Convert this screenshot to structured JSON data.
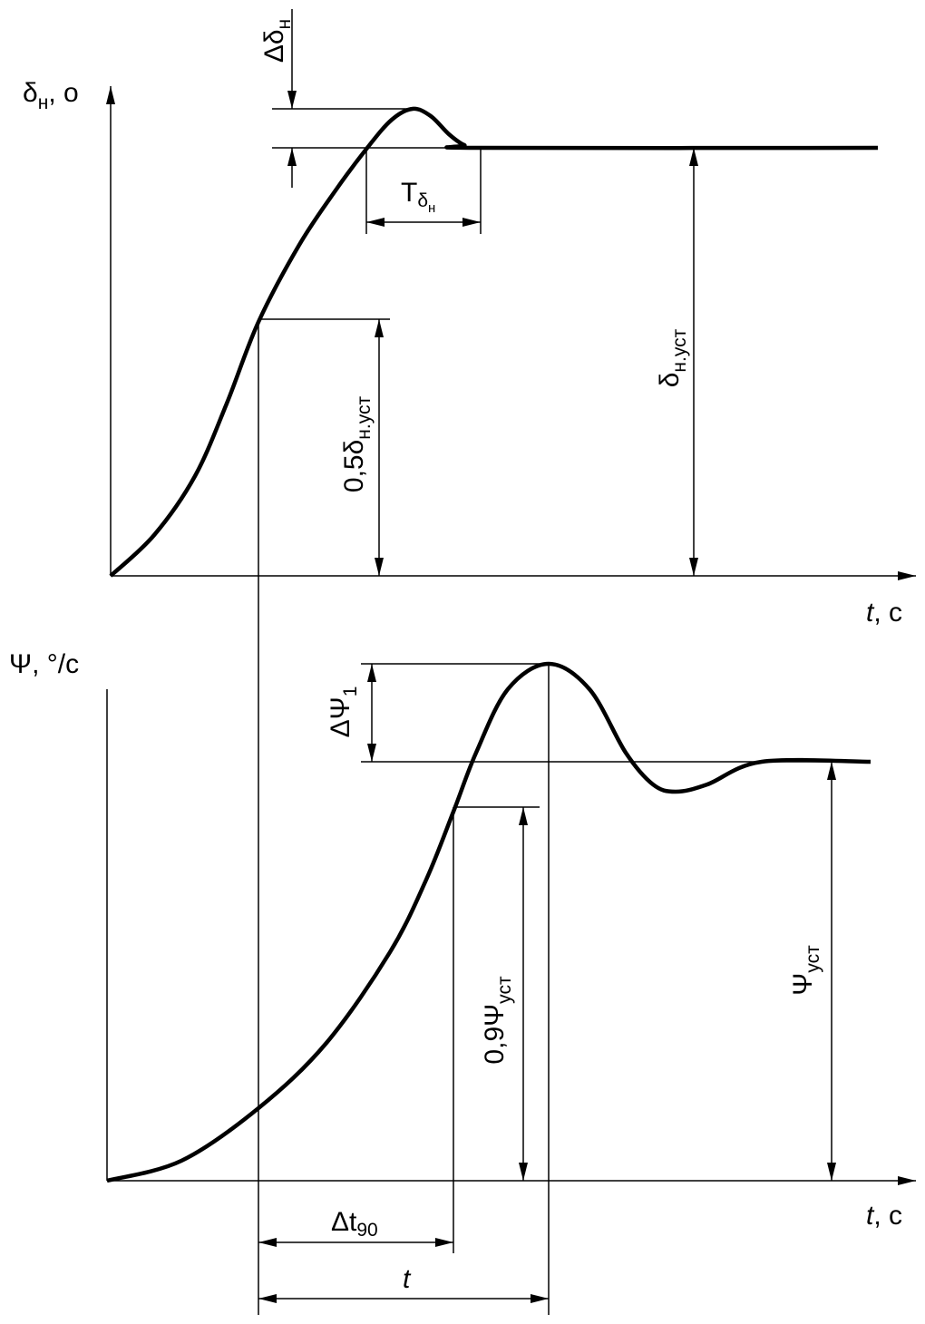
{
  "top_graph": {
    "y_axis_label": {
      "main": "δ",
      "sub": "н",
      "rest": ", о"
    },
    "x_axis_label": {
      "main": "t",
      "rest": ", с"
    },
    "overshoot_label": {
      "main": "Δδ",
      "sub": "н"
    },
    "period_label": {
      "main": "T",
      "sub": "δ",
      "subsub": "н"
    },
    "steady_label": {
      "main": "δ",
      "sub": "н.уст"
    },
    "half_label": {
      "main": "0,5δ",
      "sub": "н.уст"
    }
  },
  "bottom_graph": {
    "y_axis_label": {
      "main": "Ψ, °/с"
    },
    "x_axis_label": {
      "main": "t",
      "rest": ", с"
    },
    "overshoot_label": {
      "main": "ΔΨ",
      "sub": "1"
    },
    "ninety_label": {
      "main": "0,9Ψ",
      "sub": "уст"
    },
    "steady_label": {
      "main": "Ψ",
      "sub": "уст"
    },
    "delta_t_label": {
      "main": "Δt",
      "sub": "90"
    },
    "time_label": {
      "main": "t"
    }
  }
}
